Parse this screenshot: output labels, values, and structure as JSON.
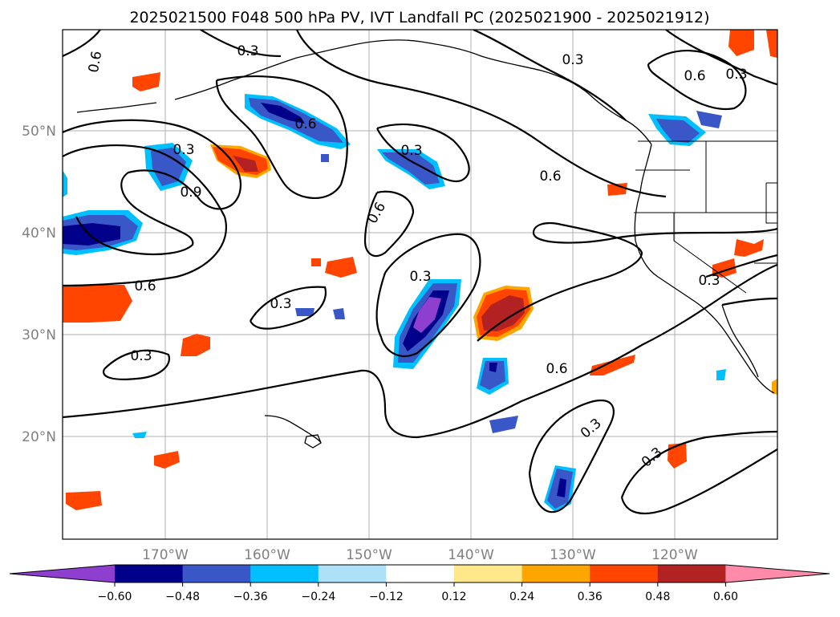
{
  "title": "2025021500 F048 500 hPa PV, IVT Landfall PC (2025021900 - 2025021912)",
  "map": {
    "lat_labels": [
      "50°N",
      "40°N",
      "30°N",
      "20°N"
    ],
    "lon_labels": [
      "170°W",
      "160°W",
      "150°W",
      "140°W",
      "130°W",
      "120°W"
    ],
    "gridline_color": "#b0b0b0",
    "coastline_color": "#000000"
  },
  "contour_labels": [
    "0.6",
    "0.3",
    "0.3",
    "0.6",
    "0.3",
    "0.3",
    "0.6",
    "0.3",
    "0.9",
    "0.6",
    "0.3",
    "0.6",
    "0.6",
    "0.3",
    "0.3",
    "0.3",
    "0.6",
    "0.3",
    "0.3"
  ],
  "colorbar": {
    "colors": [
      "#8f3fd0",
      "#00008b",
      "#3a57c8",
      "#00bfff",
      "#ade1fa",
      "#ffffff",
      "#ffe88a",
      "#ffa500",
      "#ff4500",
      "#b22222",
      "#ff8aaa"
    ],
    "tick_labels": [
      "−0.60",
      "−0.48",
      "−0.36",
      "−0.24",
      "−0.12",
      "0.12",
      "0.24",
      "0.36",
      "0.48",
      "0.60"
    ]
  }
}
